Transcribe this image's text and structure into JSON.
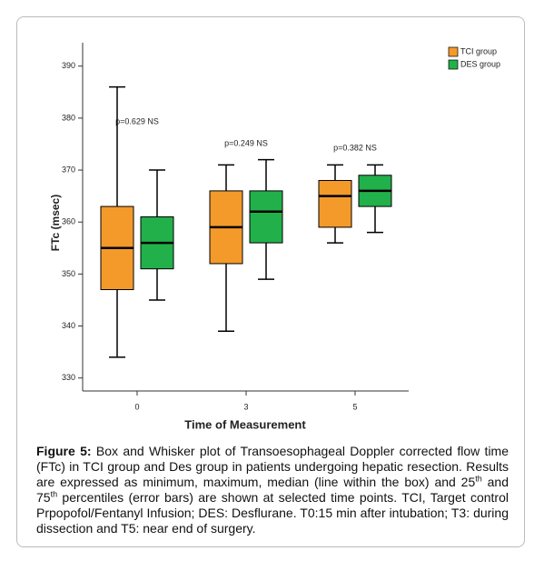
{
  "chart_data": {
    "type": "box",
    "x_label": "Time of Measurement",
    "y_label": "FTc (msec)",
    "categories": [
      "0",
      "3",
      "5"
    ],
    "ylim": [
      327.5,
      394.5
    ],
    "yticks": [
      330,
      340,
      350,
      360,
      370,
      380,
      390
    ],
    "legend": "top-right",
    "series": [
      {
        "name": "TCI group",
        "color": "#f39a2b",
        "min": [
          334,
          339,
          356
        ],
        "q1": [
          347,
          352,
          359
        ],
        "median": [
          355,
          359,
          365
        ],
        "q3": [
          363,
          366,
          368
        ],
        "max": [
          386,
          371,
          371
        ]
      },
      {
        "name": "DES group",
        "color": "#22b04b",
        "min": [
          345,
          349,
          358
        ],
        "q1": [
          351,
          356,
          363
        ],
        "median": [
          356,
          362,
          366
        ],
        "q3": [
          361,
          366,
          369
        ],
        "max": [
          370,
          372,
          371
        ]
      }
    ],
    "annotations": [
      "p=0.629 NS",
      "p=0.249 NS",
      "p=0.382 NS"
    ]
  },
  "caption": {
    "label": "Figure 5:",
    "parts": [
      "Box and Whisker plot of Transoesophageal Doppler corrected flow time (FTc) in TCI group and Des group in patients undergoing hepatic resection. Results are expressed as minimum, maximum, median (line within the box) and 25",
      "th",
      " and 75",
      "th",
      " percentiles (error bars) are shown at selected time points. TCI, Target control Prpopofol/Fentanyl Infusion; DES: Desflurane. T0:15 min after intubation; T3: during dissection and T5: near end of surgery."
    ]
  }
}
